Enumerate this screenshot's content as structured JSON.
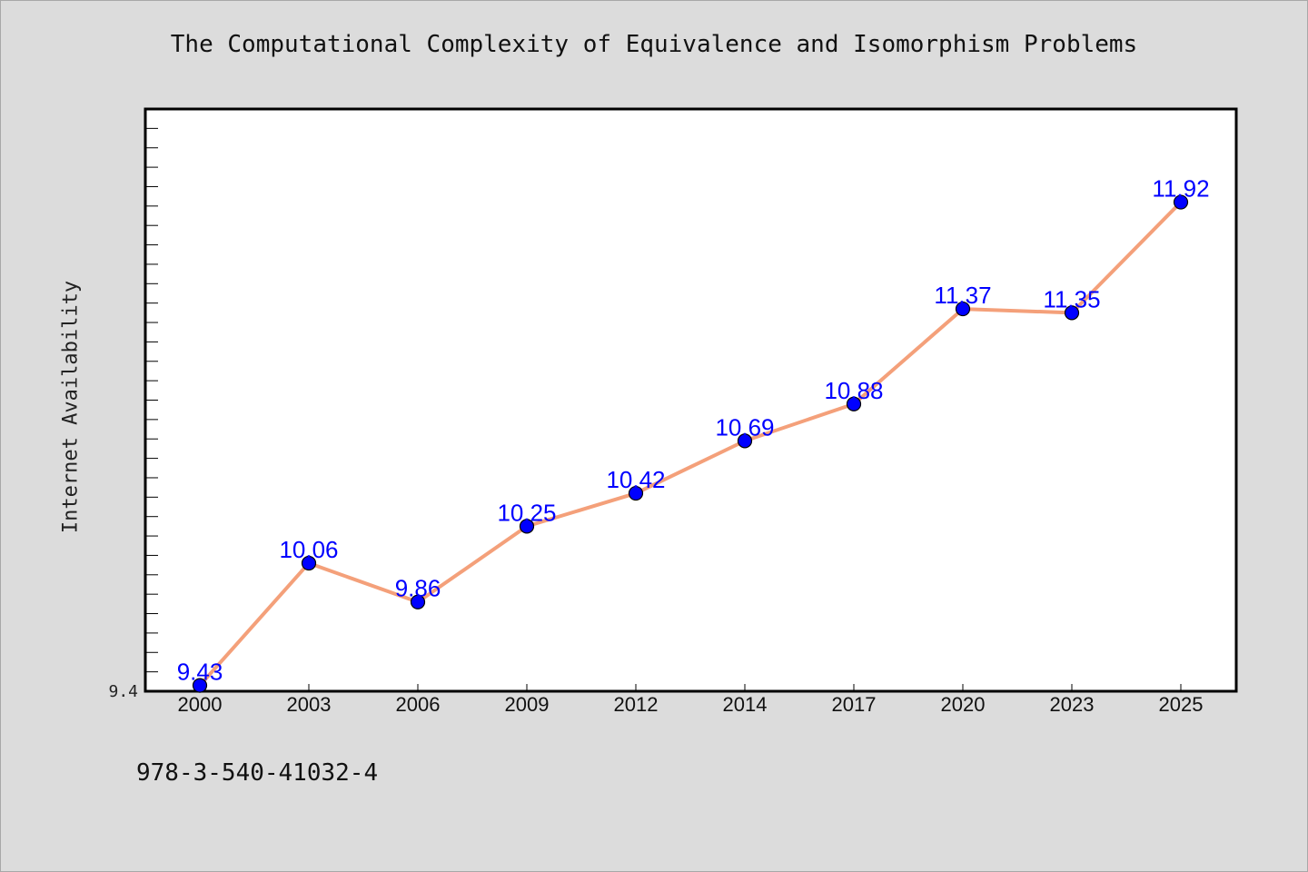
{
  "colors": {
    "background": "#dcdcdc",
    "plot_area": "#ffffff",
    "line": "#f4a07a",
    "marker": "#0000ff",
    "data_label": "#0000ff"
  },
  "footer": {
    "isbn": "978-3-540-41032-4"
  },
  "chart_data": {
    "type": "line",
    "title": "The Computational Complexity of Equivalence and Isomorphism Problems",
    "xlabel": "",
    "ylabel": "Internet Availability",
    "categories": [
      "2000",
      "2003",
      "2006",
      "2009",
      "2012",
      "2014",
      "2017",
      "2020",
      "2023",
      "2025"
    ],
    "series": [
      {
        "values": [
          9.43,
          10.06,
          9.86,
          10.25,
          10.42,
          10.69,
          10.88,
          11.37,
          11.35,
          11.92
        ]
      }
    ],
    "y_tick_labels": [
      "9.4"
    ],
    "ylim": [
      9.4,
      12.4
    ],
    "y_minor_step": 0.1,
    "grid": false,
    "legend": "none"
  }
}
